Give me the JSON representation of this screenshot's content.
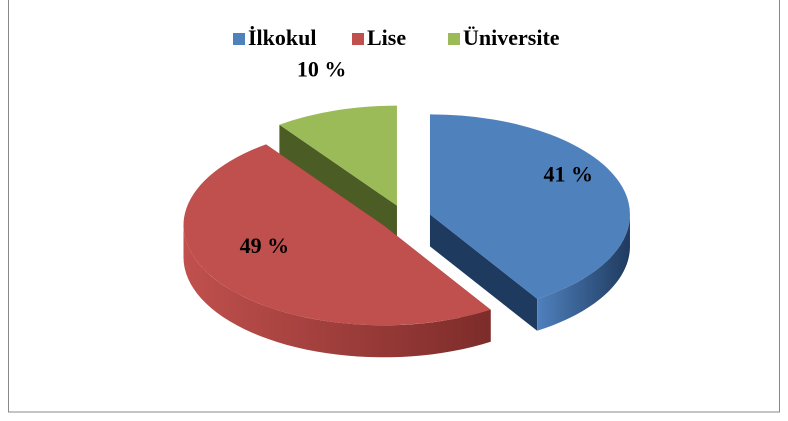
{
  "chart_data": {
    "type": "pie3d",
    "categories": [
      "İlkokul",
      "Lise",
      "Üniversite"
    ],
    "values": [
      41,
      49,
      10
    ],
    "value_labels": [
      "41 %",
      "49 %",
      "10 %"
    ],
    "colors": [
      "#4f81bd",
      "#c0504d",
      "#9bbb59"
    ],
    "side_colors": [
      "#1f3a5f",
      "#7d2c2a",
      "#4c5c25"
    ],
    "legend": "top"
  }
}
